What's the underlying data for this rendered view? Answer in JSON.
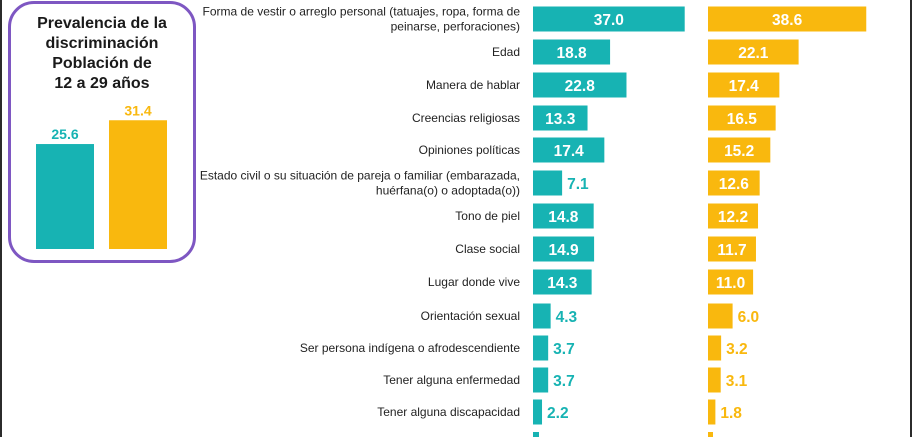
{
  "inset": {
    "title": "Prevalencia de la\ndiscriminación\nPoblación de\n12 a 29 años",
    "colors": [
      "#17b3b3",
      "#f9b80e"
    ],
    "values": [
      25.6,
      31.4
    ]
  },
  "colors": {
    "series1": "#17b3b3",
    "series2": "#f9b80e",
    "border": "#7e57c2"
  },
  "chart_data": {
    "type": "bar",
    "orientation": "horizontal",
    "categories": [
      [
        "Forma de vestir o arreglo personal (tatuajes, ropa, forma de",
        "peinarse, perforaciones)"
      ],
      [
        "Edad"
      ],
      [
        "Manera de hablar"
      ],
      [
        "Creencias religiosas"
      ],
      [
        "Opiniones políticas"
      ],
      [
        "Estado civil o su situación de pareja o familiar (embarazada,",
        "huérfana(o) o adoptada(o))"
      ],
      [
        "Tono de piel"
      ],
      [
        "Clase social"
      ],
      [
        "Lugar donde vive"
      ],
      [
        "Orientación sexual"
      ],
      [
        "Ser persona indígena o afrodescendiente"
      ],
      [
        "Tener alguna enfermedad"
      ],
      [
        "Tener alguna discapacidad"
      ]
    ],
    "series": [
      {
        "values": [
          37.0,
          18.8,
          22.8,
          13.3,
          17.4,
          7.1,
          14.8,
          14.9,
          14.3,
          4.3,
          3.7,
          3.7,
          2.2
        ],
        "color": "#17b3b3"
      },
      {
        "values": [
          38.6,
          22.1,
          17.4,
          16.5,
          15.2,
          12.6,
          12.2,
          11.7,
          11.0,
          6.0,
          3.2,
          3.1,
          1.8
        ],
        "color": "#f9b80e"
      }
    ],
    "data_labels": {
      "s1": [
        "37.0",
        "18.8",
        "22.8",
        "13.3",
        "17.4",
        "7.1",
        "14.8",
        "14.9",
        "14.3",
        "4.3",
        "3.7",
        "3.7",
        "2.2"
      ],
      "s2": [
        "38.6",
        "22.1",
        "17.4",
        "16.5",
        "15.2",
        "12.6",
        "12.2",
        "11.7",
        "11.0",
        "6.0",
        "3.2",
        "3.1",
        "1.8"
      ]
    }
  }
}
